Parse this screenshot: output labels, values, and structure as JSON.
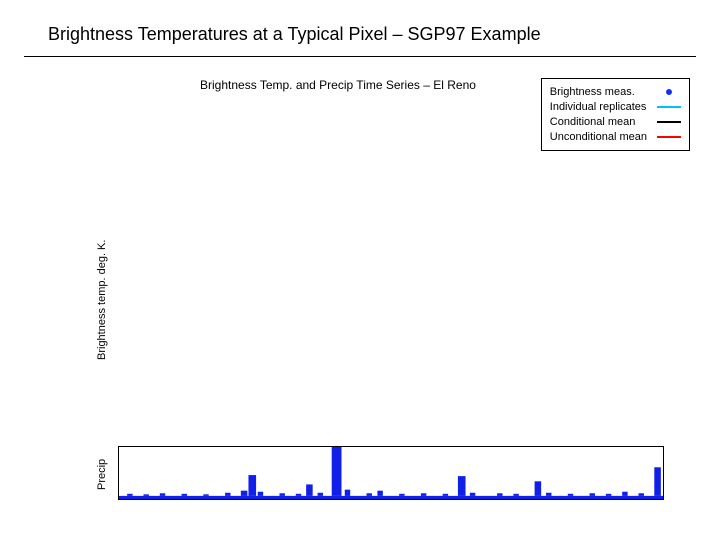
{
  "title": "Brightness Temperatures at a Typical Pixel – SGP97 Example",
  "subtitle": "Brightness Temp. and Precip Time Series – El Reno",
  "colors": {
    "text": "#000000",
    "rule": "#000000",
    "background": "#ffffff",
    "brightness_meas": "#1030ff",
    "individual_replicates": "#00bfff",
    "conditional_mean": "#000000",
    "unconditional_mean": "#ff0000",
    "precip_fill": "#1020e8"
  },
  "legend": {
    "items": [
      {
        "label": "Brightness meas.",
        "type": "dot",
        "color_key": "brightness_meas"
      },
      {
        "label": "Individual replicates",
        "type": "line",
        "color_key": "individual_replicates"
      },
      {
        "label": "Conditional mean",
        "type": "line",
        "color_key": "conditional_mean"
      },
      {
        "label": "Unconditional mean",
        "type": "line",
        "color_key": "unconditional_mean"
      }
    ],
    "fontsize": 11
  },
  "y_axis_top": {
    "label": "Brightness temp.  deg. K.",
    "fontsize": 11
  },
  "y_axis_bottom": {
    "label": "Precip",
    "fontsize": 11
  },
  "precip_chart": {
    "type": "area-bars",
    "xlim": [
      0,
      100
    ],
    "ylim": [
      0,
      100
    ],
    "background": "#ffffff",
    "border_color": "#000000",
    "fill_color": "#1020e8",
    "baseline": 6,
    "bars": [
      {
        "x": 2,
        "w": 1.0,
        "h": 4
      },
      {
        "x": 5,
        "w": 1.0,
        "h": 3
      },
      {
        "x": 8,
        "w": 1.0,
        "h": 5
      },
      {
        "x": 12,
        "w": 1.0,
        "h": 4
      },
      {
        "x": 16,
        "w": 1.0,
        "h": 3
      },
      {
        "x": 20,
        "w": 1.0,
        "h": 6
      },
      {
        "x": 23,
        "w": 1.2,
        "h": 10
      },
      {
        "x": 24.5,
        "w": 1.4,
        "h": 40
      },
      {
        "x": 26,
        "w": 1.0,
        "h": 8
      },
      {
        "x": 30,
        "w": 1.0,
        "h": 5
      },
      {
        "x": 33,
        "w": 1.0,
        "h": 4
      },
      {
        "x": 35,
        "w": 1.2,
        "h": 22
      },
      {
        "x": 37,
        "w": 1.0,
        "h": 6
      },
      {
        "x": 40,
        "w": 1.8,
        "h": 95
      },
      {
        "x": 42,
        "w": 1.0,
        "h": 12
      },
      {
        "x": 46,
        "w": 1.0,
        "h": 5
      },
      {
        "x": 48,
        "w": 1.0,
        "h": 10
      },
      {
        "x": 52,
        "w": 1.0,
        "h": 4
      },
      {
        "x": 56,
        "w": 1.0,
        "h": 5
      },
      {
        "x": 60,
        "w": 1.0,
        "h": 4
      },
      {
        "x": 63,
        "w": 1.4,
        "h": 38
      },
      {
        "x": 65,
        "w": 1.0,
        "h": 6
      },
      {
        "x": 70,
        "w": 1.0,
        "h": 5
      },
      {
        "x": 73,
        "w": 1.0,
        "h": 4
      },
      {
        "x": 77,
        "w": 1.2,
        "h": 28
      },
      {
        "x": 79,
        "w": 1.0,
        "h": 6
      },
      {
        "x": 83,
        "w": 1.0,
        "h": 4
      },
      {
        "x": 87,
        "w": 1.0,
        "h": 5
      },
      {
        "x": 90,
        "w": 1.0,
        "h": 4
      },
      {
        "x": 93,
        "w": 1.0,
        "h": 8
      },
      {
        "x": 96,
        "w": 1.0,
        "h": 5
      },
      {
        "x": 99,
        "w": 1.2,
        "h": 55
      }
    ]
  },
  "typography": {
    "title_fontsize": 18,
    "subtitle_fontsize": 12,
    "axis_label_fontsize": 11,
    "font_family": "Arial"
  }
}
